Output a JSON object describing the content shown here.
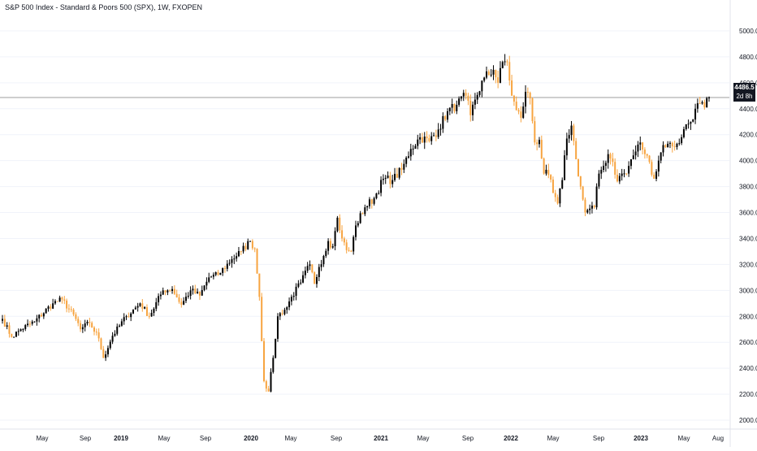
{
  "chart_title": "S&P 500 Index - Standard & Poors 500 (SPX), 1W, FXOPEN",
  "last_price_label": "4486.5",
  "countdown_label": "2d 8h",
  "colors": {
    "up": "#000000",
    "down": "#f7a440",
    "price_line": "#9e9e9e",
    "grid": "#f0f3fa",
    "text": "#131722"
  },
  "chart_data": {
    "type": "candlestick",
    "title": "S&P 500 Index - Standard & Poors 500 (SPX), 1W, FXOPEN",
    "y_axis": {
      "range": [
        2000,
        5100
      ],
      "ticks": [
        "5000.0",
        "4800.0",
        "4600.0",
        "4400.0",
        "4200.0",
        "4000.0",
        "3800.0",
        "3600.0",
        "3400.0",
        "3200.0",
        "3000.0",
        "2800.0",
        "2600.0",
        "2400.0",
        "2200.0",
        "2000.0"
      ]
    },
    "x_axis": {
      "ticks": [
        {
          "label": "May",
          "t": 0.0
        },
        {
          "label": "Sep",
          "t": 0.2
        },
        {
          "label": "2019",
          "t": 0.4,
          "bold": true
        },
        {
          "label": "May",
          "t": 0.6
        },
        {
          "label": "Sep",
          "t": 0.8
        },
        {
          "label": "2020",
          "t": 1.0,
          "bold": true
        },
        {
          "label": "May",
          "t": 1.2
        },
        {
          "label": "Sep",
          "t": 1.4
        },
        {
          "label": "2021",
          "t": 1.6,
          "bold": true
        },
        {
          "label": "May",
          "t": 1.8
        },
        {
          "label": "Sep",
          "t": 2.0
        },
        {
          "label": "2022",
          "t": 2.2,
          "bold": true
        },
        {
          "label": "May",
          "t": 2.4
        },
        {
          "label": "Sep",
          "t": 2.6
        },
        {
          "label": "2023",
          "t": 2.8,
          "bold": true
        },
        {
          "label": "May",
          "t": 3.0
        },
        {
          "label": "Aug",
          "t": 3.2
        }
      ]
    },
    "last_price": 4486.5,
    "anchors": [
      [
        0,
        2780
      ],
      [
        4,
        2640
      ],
      [
        8,
        2700
      ],
      [
        14,
        2760
      ],
      [
        22,
        2900
      ],
      [
        26,
        2930
      ],
      [
        32,
        2780
      ],
      [
        34,
        2700
      ],
      [
        38,
        2750
      ],
      [
        42,
        2630
      ],
      [
        44,
        2480
      ],
      [
        48,
        2650
      ],
      [
        54,
        2800
      ],
      [
        60,
        2900
      ],
      [
        64,
        2800
      ],
      [
        70,
        3000
      ],
      [
        74,
        3010
      ],
      [
        78,
        2890
      ],
      [
        82,
        3000
      ],
      [
        86,
        2960
      ],
      [
        90,
        3100
      ],
      [
        94,
        3120
      ],
      [
        100,
        3240
      ],
      [
        104,
        3300
      ],
      [
        108,
        3380
      ],
      [
        110,
        3320
      ],
      [
        112,
        2950
      ],
      [
        114,
        2300
      ],
      [
        116,
        2220
      ],
      [
        118,
        2480
      ],
      [
        120,
        2800
      ],
      [
        124,
        2870
      ],
      [
        126,
        2950
      ],
      [
        130,
        3060
      ],
      [
        134,
        3200
      ],
      [
        136,
        3050
      ],
      [
        138,
        3180
      ],
      [
        142,
        3380
      ],
      [
        144,
        3340
      ],
      [
        146,
        3560
      ],
      [
        148,
        3400
      ],
      [
        150,
        3310
      ],
      [
        152,
        3300
      ],
      [
        154,
        3500
      ],
      [
        158,
        3640
      ],
      [
        162,
        3710
      ],
      [
        166,
        3860
      ],
      [
        170,
        3850
      ],
      [
        174,
        3930
      ],
      [
        178,
        4090
      ],
      [
        182,
        4180
      ],
      [
        186,
        4150
      ],
      [
        190,
        4240
      ],
      [
        194,
        4380
      ],
      [
        198,
        4430
      ],
      [
        202,
        4500
      ],
      [
        204,
        4350
      ],
      [
        206,
        4470
      ],
      [
        210,
        4640
      ],
      [
        214,
        4700
      ],
      [
        216,
        4600
      ],
      [
        218,
        4760
      ],
      [
        220,
        4760
      ],
      [
        222,
        4500
      ],
      [
        224,
        4390
      ],
      [
        226,
        4330
      ],
      [
        228,
        4530
      ],
      [
        230,
        4480
      ],
      [
        232,
        4140
      ],
      [
        234,
        4160
      ],
      [
        236,
        3900
      ],
      [
        238,
        3890
      ],
      [
        240,
        3750
      ],
      [
        242,
        3670
      ],
      [
        244,
        3850
      ],
      [
        246,
        4170
      ],
      [
        248,
        4270
      ],
      [
        250,
        4010
      ],
      [
        252,
        3800
      ],
      [
        254,
        3600
      ],
      [
        256,
        3630
      ],
      [
        258,
        3640
      ],
      [
        260,
        3900
      ],
      [
        262,
        3960
      ],
      [
        264,
        4050
      ],
      [
        266,
        3990
      ],
      [
        268,
        3840
      ],
      [
        270,
        3900
      ],
      [
        272,
        3900
      ],
      [
        274,
        4010
      ],
      [
        276,
        4070
      ],
      [
        278,
        4140
      ],
      [
        280,
        4050
      ],
      [
        282,
        3990
      ],
      [
        284,
        3860
      ],
      [
        286,
        4000
      ],
      [
        288,
        4120
      ],
      [
        290,
        4130
      ],
      [
        292,
        4110
      ],
      [
        294,
        4130
      ],
      [
        296,
        4180
      ],
      [
        298,
        4280
      ],
      [
        300,
        4300
      ],
      [
        302,
        4400
      ],
      [
        304,
        4440
      ],
      [
        306,
        4410
      ],
      [
        308,
        4486.5
      ]
    ]
  }
}
